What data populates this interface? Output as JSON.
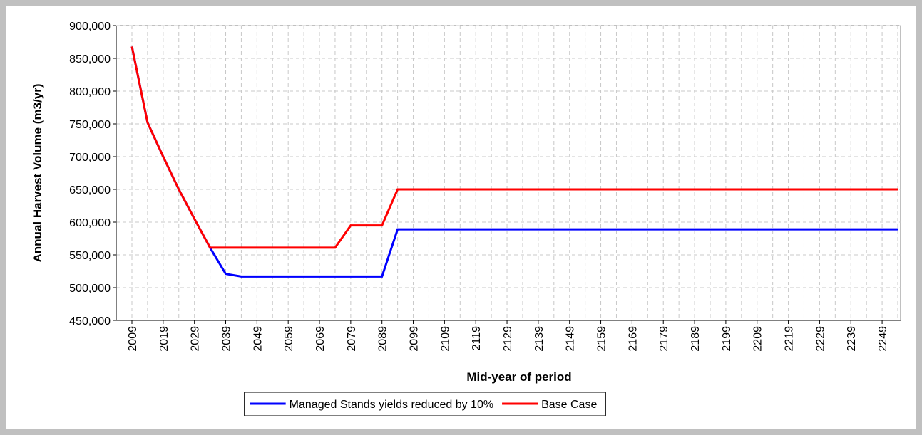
{
  "chart_data": {
    "type": "line",
    "x_label": "Mid-year of period",
    "y_label": "Annual Harvest Volume (m3/yr)",
    "categories": [
      "2009",
      null,
      "2019",
      null,
      "2029",
      null,
      "2039",
      null,
      "2049",
      null,
      "2059",
      null,
      "2069",
      null,
      "2079",
      null,
      "2089",
      null,
      "2099",
      null,
      "2109",
      null,
      "2119",
      null,
      "2129",
      null,
      "2139",
      null,
      "2149",
      null,
      "2159",
      null,
      "2169",
      null,
      "2179",
      null,
      "2189",
      null,
      "2199",
      null,
      "2209",
      null,
      "2219",
      null,
      "2229",
      null,
      "2239",
      null,
      "2249",
      null
    ],
    "series": [
      {
        "name": "Managed Stands yields reduced by 10%",
        "color": "#0000ff",
        "values": [
          868000,
          752000,
          700000,
          650000,
          605000,
          561000,
          521000,
          517000,
          517000,
          517000,
          517000,
          517000,
          517000,
          517000,
          517000,
          517000,
          517000,
          589000,
          589000,
          589000,
          589000,
          589000,
          589000,
          589000,
          589000,
          589000,
          589000,
          589000,
          589000,
          589000,
          589000,
          589000,
          589000,
          589000,
          589000,
          589000,
          589000,
          589000,
          589000,
          589000,
          589000,
          589000,
          589000,
          589000,
          589000,
          589000,
          589000,
          589000,
          589000,
          589000
        ]
      },
      {
        "name": "Base Case",
        "color": "#ff0000",
        "values": [
          868000,
          752000,
          700000,
          650000,
          605000,
          561000,
          561000,
          561000,
          561000,
          561000,
          561000,
          561000,
          561000,
          561000,
          595000,
          595000,
          595000,
          650000,
          650000,
          650000,
          650000,
          650000,
          650000,
          650000,
          650000,
          650000,
          650000,
          650000,
          650000,
          650000,
          650000,
          650000,
          650000,
          650000,
          650000,
          650000,
          650000,
          650000,
          650000,
          650000,
          650000,
          650000,
          650000,
          650000,
          650000,
          650000,
          650000,
          650000,
          650000,
          650000
        ]
      }
    ],
    "ylim": [
      450000,
      900000
    ],
    "yticks": [
      {
        "value": 450000,
        "label": "450,000"
      },
      {
        "value": 500000,
        "label": "500,000"
      },
      {
        "value": 550000,
        "label": "550,000"
      },
      {
        "value": 600000,
        "label": "600,000"
      },
      {
        "value": 650000,
        "label": "650,000"
      },
      {
        "value": 700000,
        "label": "700,000"
      },
      {
        "value": 750000,
        "label": "750,000"
      },
      {
        "value": 800000,
        "label": "800,000"
      },
      {
        "value": 850000,
        "label": "850,000"
      },
      {
        "value": 900000,
        "label": "900,000"
      }
    ],
    "grid": true,
    "legend": "bottom"
  }
}
